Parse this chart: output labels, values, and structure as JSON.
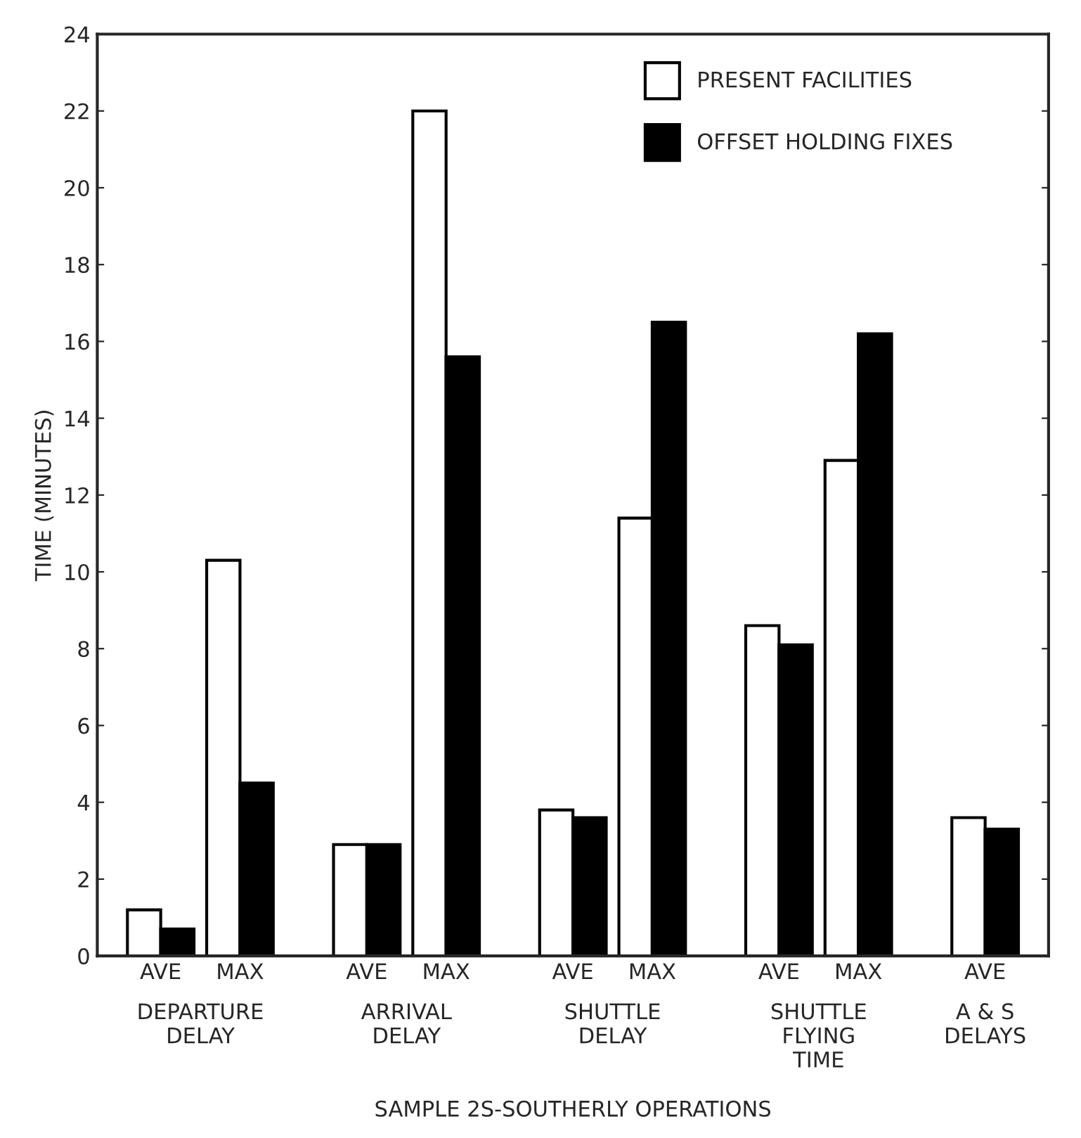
{
  "chart_data": {
    "type": "bar",
    "ylabel": "TIME (MINUTES)",
    "categories": [
      "AVE",
      "MAX",
      "AVE",
      "MAX",
      "AVE",
      "MAX",
      "AVE",
      "MAX",
      "AVE"
    ],
    "series": [
      {
        "name": "PRESENT FACILITIES",
        "color": "#ffffff",
        "values": [
          1.2,
          10.3,
          2.9,
          22.0,
          3.8,
          11.4,
          8.6,
          12.9,
          3.6
        ]
      },
      {
        "name": "OFFSET HOLDING FIXES",
        "color": "#000000",
        "values": [
          0.7,
          4.5,
          2.9,
          15.6,
          3.6,
          16.5,
          8.1,
          16.2,
          3.3
        ]
      }
    ],
    "annotations": [
      "DEPARTURE\nDELAY",
      "ARRIVAL\nDELAY",
      "SHUTTLE\nDELAY",
      "SHUTTLE\nFLYING\nTIME",
      "A & S\nDELAYS",
      "SAMPLE 2S-SOUTHERLY OPERATIONS"
    ],
    "ylim": [
      0,
      24
    ],
    "yticks": [
      0,
      2,
      4,
      6,
      8,
      10,
      12,
      14,
      16,
      18,
      20,
      22,
      24
    ],
    "grid": false,
    "legend": "top right"
  }
}
